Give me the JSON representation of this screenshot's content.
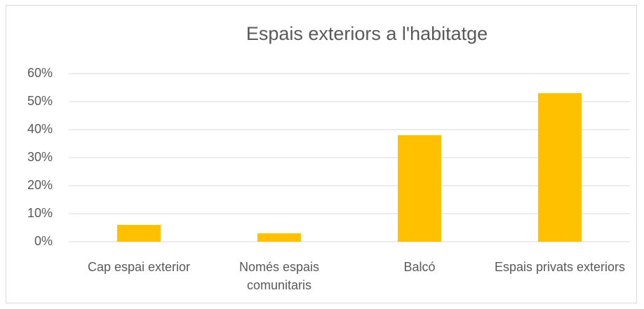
{
  "chart_data": {
    "type": "bar",
    "title": "Espais exteriors a l'habitatge",
    "categories": [
      "Cap espai exterior",
      "Només espais comunitaris",
      "Balcó",
      "Espais privats exteriors"
    ],
    "values": [
      6,
      3,
      38,
      53
    ],
    "color": "#ffc000",
    "ylim": [
      0,
      60
    ],
    "yticks": [
      {
        "value": 0,
        "label": "0%"
      },
      {
        "value": 10,
        "label": "10%"
      },
      {
        "value": 20,
        "label": "20%"
      },
      {
        "value": 30,
        "label": "30%"
      },
      {
        "value": 40,
        "label": "40%"
      },
      {
        "value": 50,
        "label": "50%"
      },
      {
        "value": 60,
        "label": "60%"
      }
    ],
    "grid": true
  }
}
